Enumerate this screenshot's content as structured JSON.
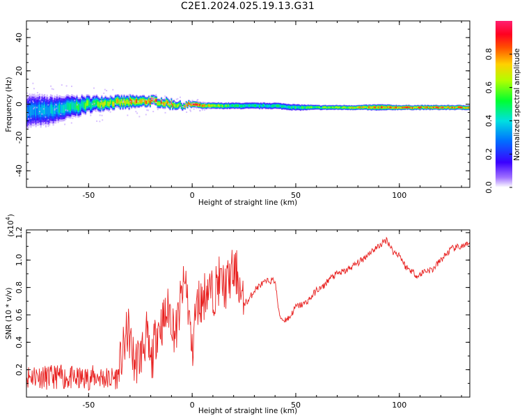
{
  "title": "C2E1.2024.025.19.13.G31",
  "chart_data": [
    {
      "type": "heatmap",
      "xlabel": "Height of straight line (km)",
      "ylabel": "Frequency (Hz)",
      "xlim": [
        -80,
        134
      ],
      "ylim": [
        -50,
        50
      ],
      "xticks": [
        -50,
        0,
        50,
        100
      ],
      "yticks": [
        -40,
        -20,
        0,
        20,
        40
      ],
      "colorbar": {
        "label": "Normalized spectral amplitude",
        "range": [
          0,
          1
        ],
        "ticks": [
          "0.0",
          "0.2",
          "0.4",
          "0.6",
          "0.8"
        ],
        "colormap": [
          "#ffffff",
          "#8a2be2",
          "#0000ff",
          "#00c8ff",
          "#00ff00",
          "#ffff00",
          "#ff9900",
          "#ff0000",
          "#ff1a66"
        ]
      },
      "ridge": {
        "x": [
          -80,
          -70,
          -60,
          -50,
          -40,
          -30,
          -20,
          -10,
          -5,
          0,
          5,
          10,
          20,
          30,
          40,
          50,
          60,
          70,
          80,
          90,
          100,
          110,
          120,
          134
        ],
        "frequency": [
          -4,
          -4,
          -2,
          0,
          1,
          1,
          2,
          0,
          -1,
          0,
          -1,
          -1,
          -1,
          -1,
          -1,
          -2,
          -2,
          -2,
          -2,
          -2,
          -2,
          -2,
          -2,
          -2
        ],
        "width": [
          10,
          9,
          7,
          5,
          4,
          4,
          3,
          3,
          2,
          2,
          2,
          2,
          2,
          2,
          2,
          2,
          1.5,
          1.5,
          1.5,
          2,
          1.5,
          1.5,
          1.5,
          1.5
        ],
        "peak_amplitude": [
          0.35,
          0.4,
          0.5,
          0.6,
          0.7,
          0.8,
          0.9,
          0.8,
          0.7,
          0.95,
          0.8,
          0.75,
          0.55,
          0.5,
          0.5,
          0.55,
          0.6,
          0.7,
          0.8,
          0.85,
          0.9,
          0.9,
          0.9,
          0.9
        ]
      }
    },
    {
      "type": "line",
      "xlabel": "Height of straight line (km)",
      "ylabel": "SNR (10 * v/v)",
      "y_multiplier": "(x10",
      "y_multiplier_exp": "4",
      "y_multiplier_close": ")",
      "xlim": [
        -80,
        134
      ],
      "ylim": [
        0,
        1.22
      ],
      "xticks": [
        -50,
        0,
        50,
        100
      ],
      "yticks": [
        "0.2",
        "0.4",
        "0.6",
        "0.8",
        "1.0",
        "1.2"
      ],
      "series": [
        {
          "color": "#e8201f",
          "x": [
            -80,
            -75,
            -70,
            -65,
            -60,
            -55,
            -50,
            -45,
            -40,
            -36,
            -33,
            -31,
            -28,
            -25,
            -22,
            -20,
            -17,
            -14,
            -11,
            -8,
            -5,
            -3,
            -1,
            0,
            1,
            3,
            5,
            7,
            10,
            13,
            16,
            19,
            22,
            24,
            27,
            30,
            33,
            37,
            40,
            42,
            44,
            47,
            50,
            54,
            57,
            60,
            63,
            66,
            70,
            74,
            78,
            82,
            86,
            90,
            94,
            97,
            100,
            103,
            106,
            109,
            112,
            116,
            120,
            125,
            130,
            134
          ],
          "y": [
            0.15,
            0.16,
            0.14,
            0.15,
            0.14,
            0.13,
            0.14,
            0.15,
            0.13,
            0.15,
            0.35,
            0.5,
            0.25,
            0.3,
            0.45,
            0.22,
            0.5,
            0.55,
            0.65,
            0.45,
            0.75,
            0.85,
            0.5,
            0.3,
            0.55,
            0.7,
            0.7,
            0.8,
            0.75,
            0.85,
            0.8,
            0.9,
            0.9,
            0.68,
            0.7,
            0.78,
            0.82,
            0.85,
            0.85,
            0.6,
            0.56,
            0.58,
            0.66,
            0.68,
            0.72,
            0.78,
            0.8,
            0.86,
            0.9,
            0.92,
            0.96,
            1.0,
            1.06,
            1.1,
            1.15,
            1.06,
            1.04,
            0.95,
            0.92,
            0.88,
            0.92,
            0.93,
            1.0,
            1.08,
            1.1,
            1.11
          ]
        }
      ]
    }
  ]
}
